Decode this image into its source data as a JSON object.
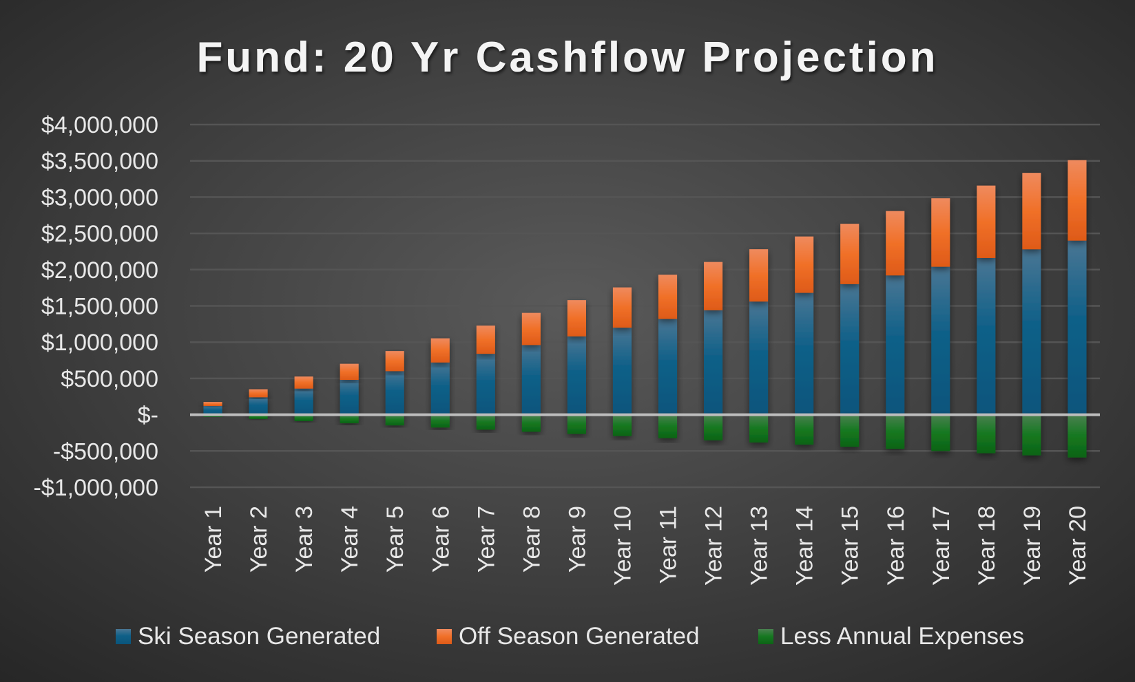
{
  "chart_data": {
    "type": "bar",
    "stacked": true,
    "title": "Fund: 20 Yr Cashflow Projection",
    "xlabel": "",
    "ylabel": "",
    "ylim": [
      -1000000,
      4000000
    ],
    "yticks": [
      4000000,
      3500000,
      3000000,
      2500000,
      2000000,
      1500000,
      1000000,
      500000,
      0,
      -500000,
      -1000000
    ],
    "ytick_labels": [
      "$4,000,000",
      "$3,500,000",
      "$3,000,000",
      "$2,500,000",
      "$2,000,000",
      "$1,500,000",
      "$1,000,000",
      "$500,000",
      "$-",
      "-$500,000",
      "-$1,000,000"
    ],
    "grid": true,
    "legend_position": "bottom",
    "categories": [
      "Year 1",
      "Year 2",
      "Year 3",
      "Year 4",
      "Year 5",
      "Year 6",
      "Year 7",
      "Year 8",
      "Year 9",
      "Year 10",
      "Year 11",
      "Year 12",
      "Year 13",
      "Year 14",
      "Year 15",
      "Year 16",
      "Year 17",
      "Year 18",
      "Year 19",
      "Year 20"
    ],
    "series": [
      {
        "name": "Ski Season Generated",
        "color": "#0e5f86",
        "values": [
          120000,
          240000,
          360000,
          480000,
          600000,
          720000,
          840000,
          960000,
          1080000,
          1200000,
          1320000,
          1440000,
          1560000,
          1680000,
          1800000,
          1920000,
          2040000,
          2160000,
          2280000,
          2400000
        ]
      },
      {
        "name": "Off Season Generated",
        "color": "#f07028",
        "values": [
          55500,
          111000,
          166500,
          222000,
          277500,
          333000,
          388500,
          444000,
          499500,
          555000,
          610500,
          666000,
          721500,
          777000,
          832500,
          888000,
          943500,
          999000,
          1054500,
          1110000
        ]
      },
      {
        "name": "Less Annual Expenses",
        "color": "#127a1e",
        "values": [
          -29500,
          -59000,
          -88500,
          -118000,
          -147500,
          -177000,
          -206500,
          -236000,
          -265500,
          -295000,
          -324500,
          -354000,
          -383500,
          -413000,
          -442500,
          -472000,
          -501500,
          -531000,
          -560500,
          -590000
        ]
      }
    ]
  }
}
